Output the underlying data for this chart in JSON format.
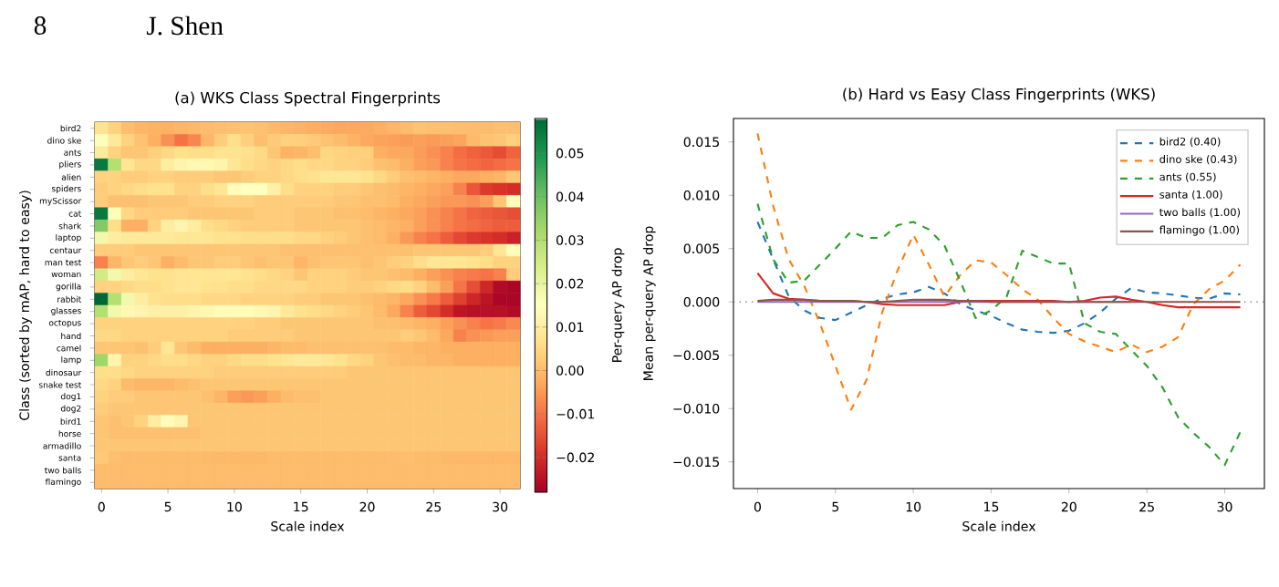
{
  "chart_data": [
    {
      "type": "heatmap",
      "title": "(a) WKS Class Spectral Fingerprints",
      "xlabel": "Scale index",
      "ylabel": "Class (sorted by mAP, hard to easy)",
      "clabel": "Per-query AP drop",
      "annotations": [
        "8",
        "J. Shen"
      ],
      "x": [
        0,
        1,
        2,
        3,
        4,
        5,
        6,
        7,
        8,
        9,
        10,
        11,
        12,
        13,
        14,
        15,
        16,
        17,
        18,
        19,
        20,
        21,
        22,
        23,
        24,
        25,
        26,
        27,
        28,
        29,
        30,
        31
      ],
      "xlim": [
        -0.5,
        31.5
      ],
      "xticks": [
        0,
        5,
        10,
        15,
        20,
        25,
        30
      ],
      "y_categories": [
        "bird2",
        "dino ske",
        "ants",
        "pliers",
        "alien",
        "spiders",
        "myScissor",
        "cat",
        "shark",
        "laptop",
        "centaur",
        "man test",
        "woman",
        "gorilla",
        "rabbit",
        "glasses",
        "octopus",
        "hand",
        "camel",
        "lamp",
        "dinosaur",
        "snake test",
        "dog1",
        "dog2",
        "bird1",
        "horse",
        "armadillo",
        "santa",
        "two balls",
        "flamingo"
      ],
      "clim": [
        -0.028,
        0.058
      ],
      "cticks": [
        {
          "value": -0.02,
          "label": "−0.02"
        },
        {
          "value": -0.01,
          "label": "−0.01"
        },
        {
          "value": 0,
          "label": "0.00"
        },
        {
          "value": 0.01,
          "label": "0.01"
        },
        {
          "value": 0.02,
          "label": "0.02"
        },
        {
          "value": 0.03,
          "label": "0.03"
        },
        {
          "value": 0.04,
          "label": "0.04"
        },
        {
          "value": 0.05,
          "label": "0.05"
        }
      ],
      "cells": [
        [
          0.0075,
          0.004,
          0.0005,
          -0.0008,
          -0.0015,
          -0.0017,
          -0.001,
          -0.0003,
          0.0003,
          0.0007,
          0.0009,
          0.0014,
          0.0008,
          -0.0002,
          -0.0008,
          -0.0013,
          -0.002,
          -0.0026,
          -0.0028,
          -0.0029,
          -0.0027,
          -0.002,
          -0.001,
          0.0003,
          0.0013,
          0.0009,
          0.0008,
          0.0006,
          0.0004,
          0.0003,
          0.0008,
          0.0007
        ],
        [
          0.0158,
          0.009,
          0.004,
          0.0015,
          -0.002,
          -0.006,
          -0.0101,
          -0.0073,
          -0.001,
          0.003,
          0.0063,
          0.0035,
          0.0005,
          0.0025,
          0.0039,
          0.0037,
          0.0025,
          0.0012,
          0.0002,
          -0.0015,
          -0.003,
          -0.0037,
          -0.0042,
          -0.0047,
          -0.004,
          -0.0047,
          -0.0042,
          -0.0033,
          -0.0002,
          0.0012,
          0.002,
          0.0035
        ],
        [
          0.0092,
          0.004,
          0.0018,
          0.002,
          0.0035,
          0.005,
          0.0066,
          0.006,
          0.006,
          0.0072,
          0.0075,
          0.0068,
          0.0053,
          0.002,
          -0.0015,
          -0.0008,
          0.0005,
          0.0048,
          0.0042,
          0.0036,
          0.0036,
          -0.002,
          -0.0028,
          -0.003,
          -0.0045,
          -0.006,
          -0.008,
          -0.0108,
          -0.0123,
          -0.0136,
          -0.0153,
          -0.0122
        ],
        [
          0.055,
          0.03,
          0.008,
          0.005,
          0.005,
          0.01,
          0.012,
          0.013,
          0.013,
          0.012,
          0.008,
          0.006,
          0.005,
          0.004,
          0.005,
          0.006,
          0.005,
          0.005,
          0.004,
          0.004,
          0.003,
          0.001,
          0,
          -0.002,
          -0.004,
          -0.005,
          -0.008,
          -0.01,
          -0.011,
          -0.012,
          -0.011,
          -0.01
        ],
        [
          0.004,
          0.004,
          0.003,
          0.003,
          0.004,
          0.004,
          0.003,
          0.003,
          0.003,
          0.002,
          0.002,
          0.003,
          0.004,
          0.004,
          0.005,
          0.006,
          0.007,
          0.008,
          0.008,
          0.008,
          0.007,
          0.005,
          0.003,
          0.001,
          0,
          -0.001,
          -0.002,
          -0.003,
          -0.003,
          -0.002,
          -0.001,
          0.002
        ],
        [
          0.003,
          0.004,
          0.005,
          0.006,
          0.007,
          0.007,
          0.004,
          0.004,
          0.006,
          0.008,
          0.014,
          0.015,
          0.015,
          0.011,
          0.006,
          0.004,
          0.004,
          0.004,
          0.003,
          0.003,
          0.002,
          0.001,
          0,
          -0.001,
          -0.002,
          -0.003,
          -0.004,
          -0.008,
          -0.014,
          -0.018,
          -0.019,
          -0.02
        ],
        [
          0.003,
          0.001,
          0.001,
          0.001,
          0.002,
          0.002,
          0.002,
          0.003,
          0.003,
          0.004,
          0.004,
          0.004,
          0.003,
          0.003,
          0.003,
          0.003,
          0.003,
          0.003,
          0.002,
          0.002,
          0.001,
          0.001,
          0,
          -0.002,
          -0.003,
          -0.004,
          -0.005,
          -0.005,
          -0.006,
          -0.004,
          0.002,
          0.014
        ],
        [
          0.055,
          0.016,
          0.005,
          0.003,
          0.003,
          0.003,
          0.003,
          0.002,
          0.002,
          0.002,
          0.002,
          0.002,
          0.003,
          0.003,
          0.003,
          0.002,
          0.002,
          0.002,
          0.001,
          0.001,
          0,
          -0.001,
          -0.002,
          -0.003,
          -0.004,
          -0.006,
          -0.008,
          -0.01,
          -0.012,
          -0.013,
          -0.014,
          -0.015
        ],
        [
          0.037,
          0.006,
          -0.002,
          -0.002,
          0.004,
          0.01,
          0.012,
          0.01,
          0.006,
          0.005,
          0.004,
          0.003,
          0.003,
          0.003,
          0.003,
          0.002,
          0.002,
          0.002,
          0.002,
          0.002,
          0.001,
          0,
          -0.001,
          -0.002,
          -0.004,
          -0.006,
          -0.008,
          -0.01,
          -0.011,
          -0.012,
          -0.013,
          -0.013
        ],
        [
          0.018,
          0.01,
          0.009,
          0.009,
          0.009,
          0.009,
          0.008,
          0.008,
          0.008,
          0.007,
          0.007,
          0.006,
          0.006,
          0.006,
          0.006,
          0.005,
          0.005,
          0.004,
          0.003,
          0.002,
          0.001,
          0,
          -0.002,
          -0.005,
          -0.008,
          -0.01,
          -0.013,
          -0.016,
          -0.018,
          -0.019,
          -0.02,
          -0.022
        ],
        [
          0.003,
          0.003,
          0.003,
          0.002,
          0.002,
          0.002,
          0.002,
          0.002,
          0.002,
          0.002,
          0.002,
          0.002,
          0.002,
          0.002,
          0.001,
          0.001,
          0.001,
          0.001,
          0.001,
          0.001,
          0.001,
          0.001,
          0.001,
          0.001,
          0.002,
          0.002,
          0.002,
          0.002,
          0.002,
          0.003,
          0.008,
          0.016
        ],
        [
          -0.008,
          -0.001,
          0.002,
          0.003,
          0.002,
          -0.002,
          0,
          0.002,
          0.002,
          0.003,
          0.003,
          0.002,
          0.001,
          0.002,
          0.002,
          -0.001,
          0.001,
          0.002,
          0.002,
          0.002,
          0.001,
          0.002,
          0.003,
          0.004,
          0.006,
          0.008,
          0.008,
          0.008,
          0.007,
          0.006,
          0.004,
          0.004
        ],
        [
          0.025,
          0.018,
          0.01,
          0.008,
          0.007,
          0.007,
          0.008,
          0.008,
          0.008,
          0.008,
          0.008,
          0.007,
          0.006,
          0.005,
          0.004,
          0.002,
          0.004,
          0.004,
          0.004,
          0.003,
          0.002,
          0.002,
          0.001,
          0,
          -0.002,
          -0.004,
          -0.006,
          -0.008,
          -0.009,
          -0.01,
          -0.008,
          0.003
        ],
        [
          0.004,
          0.004,
          0.005,
          0.006,
          0.006,
          0.007,
          0.008,
          0.008,
          0.007,
          0.007,
          0.006,
          0.006,
          0.005,
          0.005,
          0.005,
          0.005,
          0.004,
          0.004,
          0.004,
          0.003,
          0.003,
          0.004,
          0.005,
          0.006,
          0.004,
          0,
          -0.004,
          -0.01,
          -0.015,
          -0.021,
          -0.026,
          -0.027
        ],
        [
          0.058,
          0.03,
          0.018,
          0.01,
          0.007,
          0.006,
          0.006,
          0.006,
          0.005,
          0.005,
          0.005,
          0.004,
          0.004,
          0.004,
          0.004,
          0.003,
          0.003,
          0.002,
          0.002,
          0.002,
          0.001,
          0,
          -0.001,
          -0.003,
          -0.006,
          -0.009,
          -0.013,
          -0.017,
          -0.021,
          -0.024,
          -0.027,
          -0.027
        ],
        [
          0.03,
          0.018,
          0.013,
          0.012,
          0.011,
          0.011,
          0.011,
          0.012,
          0.013,
          0.014,
          0.014,
          0.014,
          0.013,
          0.012,
          0.009,
          0.007,
          0.006,
          0.005,
          0.004,
          0.003,
          0.002,
          0,
          -0.003,
          -0.008,
          -0.013,
          -0.016,
          -0.02,
          -0.024,
          -0.025,
          -0.025,
          -0.025,
          -0.026
        ],
        [
          0.004,
          0.004,
          0.004,
          0.004,
          0.004,
          0.004,
          0.004,
          0.004,
          0.004,
          0.004,
          0.004,
          0.004,
          0.003,
          0.003,
          0.002,
          0.002,
          0.002,
          0.002,
          0.002,
          0.002,
          0.002,
          0.001,
          0.001,
          0,
          -0.001,
          -0.002,
          -0.004,
          -0.006,
          -0.008,
          -0.01,
          -0.009,
          -0.007
        ],
        [
          0.005,
          0.005,
          0.004,
          0.004,
          0.004,
          0.004,
          0.004,
          0.004,
          0.004,
          0.004,
          0.003,
          0.003,
          0.003,
          0.003,
          0.003,
          0.002,
          0.002,
          0.002,
          0.002,
          0.002,
          0.002,
          0.002,
          0.002,
          0.003,
          0.002,
          0,
          -0.003,
          -0.008,
          -0.006,
          -0.005,
          -0.004,
          -0.004
        ],
        [
          0.002,
          0.002,
          0.002,
          0.001,
          0.003,
          0.008,
          0.002,
          0,
          -0.002,
          -0.002,
          -0.002,
          -0.002,
          -0.002,
          -0.001,
          0,
          0,
          0.001,
          0.001,
          0.001,
          0.001,
          0.001,
          0.001,
          0,
          0,
          -0.001,
          -0.001,
          -0.002,
          -0.002,
          -0.002,
          -0.002,
          -0.002,
          -0.002
        ],
        [
          0.033,
          0.012,
          0.004,
          0.004,
          0.005,
          0.006,
          0.006,
          0.005,
          0.004,
          0.004,
          0.005,
          0.006,
          0.006,
          0.007,
          0.008,
          0.009,
          0.009,
          0.008,
          0.007,
          0.005,
          0.004,
          0.002,
          0.001,
          0,
          0,
          -0.001,
          -0.001,
          -0.002,
          -0.002,
          -0.002,
          -0.002,
          -0.002
        ],
        [
          0.006,
          0.006,
          0.005,
          0.004,
          0.004,
          0.004,
          0.004,
          0.004,
          0.004,
          0.003,
          0.003,
          0.003,
          0.003,
          0.003,
          0.003,
          0.003,
          0.003,
          0.003,
          0.003,
          0.002,
          0.002,
          0.002,
          0.002,
          0.002,
          0.002,
          0.002,
          0.002,
          0.002,
          0.002,
          0.002,
          0.002,
          0.002
        ],
        [
          0.005,
          0.004,
          0,
          -0.001,
          -0.001,
          -0.001,
          0,
          0.001,
          0.002,
          0.002,
          0.002,
          0.002,
          0.002,
          0.002,
          0.002,
          0.002,
          0.002,
          0.002,
          0.002,
          0.002,
          0.002,
          0.002,
          0.002,
          0.002,
          0.002,
          0.002,
          0.002,
          0.002,
          0.002,
          0.002,
          0.002,
          0.002
        ],
        [
          0.004,
          0.003,
          0.003,
          0.002,
          0.002,
          0.002,
          0.002,
          0.002,
          0.001,
          -0.001,
          -0.004,
          -0.005,
          -0.004,
          -0.002,
          0,
          0.001,
          0.001,
          0.002,
          0.002,
          0.002,
          0.002,
          0.002,
          0.002,
          0.002,
          0.002,
          0.002,
          0.002,
          0.002,
          0.002,
          0.002,
          0.002,
          0.002
        ],
        [
          0.003,
          0.002,
          0.002,
          0.002,
          0.002,
          0.002,
          0.002,
          0.002,
          0.002,
          0.002,
          0.002,
          0.002,
          0.002,
          0.002,
          0.002,
          0.002,
          0.002,
          0.002,
          0.002,
          0.002,
          0.002,
          0.002,
          0.002,
          0.002,
          0.002,
          0.002,
          0.002,
          0.002,
          0.002,
          0.002,
          0.002,
          0.002
        ],
        [
          0.002,
          0.001,
          0.002,
          0.004,
          0.01,
          0.014,
          0.012,
          0.002,
          0.002,
          0.002,
          0.002,
          0.002,
          0.002,
          0.002,
          0.002,
          0.002,
          0.002,
          0.002,
          0.002,
          0.002,
          0.002,
          0.002,
          0.002,
          0.002,
          0.002,
          0.002,
          0.002,
          0.002,
          0.002,
          0.002,
          0.002,
          0.002
        ],
        [
          0.002,
          0.001,
          0.001,
          0.001,
          0.001,
          0.001,
          0.001,
          0.001,
          0.002,
          0.002,
          0.002,
          0.002,
          0.002,
          0.002,
          0.002,
          0.002,
          0.002,
          0.002,
          0.002,
          0.002,
          0.002,
          0.002,
          0.002,
          0.002,
          0.002,
          0.002,
          0.002,
          0.002,
          0.002,
          0.002,
          0.002,
          0.002
        ],
        [
          0.002,
          0.002,
          0.002,
          0.002,
          0.002,
          0.002,
          0.002,
          0.002,
          0.002,
          0.002,
          0.002,
          0.002,
          0.002,
          0.002,
          0.002,
          0.002,
          0.002,
          0.002,
          0.002,
          0.002,
          0.002,
          0.002,
          0.002,
          0.002,
          0.002,
          0.002,
          0.002,
          0.002,
          0.002,
          0.002,
          0.002,
          0.002
        ],
        [
          0.0027,
          0.0008,
          0.0003,
          0.0002,
          0.0001,
          0.0001,
          0.0001,
          0,
          -0.0002,
          -0.0003,
          -0.0003,
          -0.0003,
          -0.0003,
          0,
          0.0001,
          0.0001,
          0.0001,
          0.0001,
          0.0001,
          0.0001,
          0,
          0.0001,
          0.0004,
          0.0005,
          0.0002,
          0,
          -0.0003,
          -0.0005,
          -0.0005,
          -0.0005,
          -0.0005,
          -0.0005
        ],
        [
          0,
          0,
          0,
          0,
          0,
          0,
          0,
          0,
          0,
          0,
          0,
          0,
          0,
          0,
          0,
          0,
          0,
          0,
          0,
          0,
          0,
          0,
          0,
          0,
          0,
          0,
          0,
          0,
          0,
          0,
          0,
          0
        ],
        [
          0.0001,
          0.0002,
          0.0002,
          0.0002,
          0.0001,
          0.0001,
          0.0001,
          0,
          0,
          0.0001,
          0.0002,
          0.0002,
          0.0002,
          0.0001,
          0.0001,
          0,
          0,
          0,
          0,
          0,
          0,
          0,
          0,
          0,
          0,
          0,
          0,
          0,
          0,
          0,
          0,
          0
        ]
      ]
    },
    {
      "type": "line",
      "title": "(b) Hard vs Easy Class Fingerprints (WKS)",
      "xlabel": "Scale index",
      "ylabel": "Mean per-query AP drop",
      "x": [
        0,
        1,
        2,
        3,
        4,
        5,
        6,
        7,
        8,
        9,
        10,
        11,
        12,
        13,
        14,
        15,
        16,
        17,
        18,
        19,
        20,
        21,
        22,
        23,
        24,
        25,
        26,
        27,
        28,
        29,
        30,
        31
      ],
      "xlim": [
        -1.55,
        32.55
      ],
      "xticks": [
        0,
        5,
        10,
        15,
        20,
        25,
        30
      ],
      "ylim": [
        -0.0175,
        0.0172
      ],
      "yticks": [
        {
          "value": -0.015,
          "label": "−0.015"
        },
        {
          "value": -0.01,
          "label": "−0.010"
        },
        {
          "value": -0.005,
          "label": "−0.005"
        },
        {
          "value": 0,
          "label": "0.000"
        },
        {
          "value": 0.005,
          "label": "0.005"
        },
        {
          "value": 0.01,
          "label": "0.010"
        },
        {
          "value": 0.015,
          "label": "0.015"
        }
      ],
      "legend": "top right",
      "ref_lines": [
        {
          "axis": "y",
          "value": 0,
          "color": "#808080",
          "line_style": "dotted"
        }
      ],
      "series": [
        {
          "name": "bird2 (0.40)",
          "color": "#1f77b4",
          "line_style": "dashed",
          "values": [
            0.0075,
            0.004,
            0.0005,
            -0.0008,
            -0.0015,
            -0.0017,
            -0.001,
            -0.0003,
            0.0003,
            0.0007,
            0.0009,
            0.0014,
            0.0008,
            -0.0002,
            -0.0008,
            -0.0013,
            -0.002,
            -0.0026,
            -0.0028,
            -0.0029,
            -0.0027,
            -0.002,
            -0.001,
            0.0003,
            0.0013,
            0.0009,
            0.0008,
            0.0006,
            0.0004,
            0.0003,
            0.0008,
            0.0007
          ]
        },
        {
          "name": "dino ske (0.43)",
          "color": "#ff7f0e",
          "line_style": "dashed",
          "values": [
            0.0158,
            0.009,
            0.004,
            0.0015,
            -0.002,
            -0.006,
            -0.0101,
            -0.0073,
            -0.001,
            0.003,
            0.0063,
            0.0035,
            0.0005,
            0.0025,
            0.0039,
            0.0037,
            0.0025,
            0.0012,
            0.0002,
            -0.0015,
            -0.003,
            -0.0037,
            -0.0042,
            -0.0047,
            -0.004,
            -0.0047,
            -0.0042,
            -0.0033,
            -0.0002,
            0.0012,
            0.002,
            0.0035
          ]
        },
        {
          "name": "ants (0.55)",
          "color": "#2ca02c",
          "line_style": "dashed",
          "values": [
            0.0092,
            0.004,
            0.0018,
            0.002,
            0.0035,
            0.005,
            0.0066,
            0.006,
            0.006,
            0.0072,
            0.0075,
            0.0068,
            0.0053,
            0.002,
            -0.0015,
            -0.0008,
            0.0005,
            0.0048,
            0.0042,
            0.0036,
            0.0036,
            -0.002,
            -0.0028,
            -0.003,
            -0.0045,
            -0.006,
            -0.008,
            -0.0108,
            -0.0123,
            -0.0136,
            -0.0153,
            -0.0122
          ]
        },
        {
          "name": "santa (1.00)",
          "color": "#d62728",
          "line_style": "solid",
          "values": [
            0.0027,
            0.0008,
            0.0003,
            0.0002,
            0.0001,
            0.0001,
            0.0001,
            0,
            -0.0002,
            -0.0003,
            -0.0003,
            -0.0003,
            -0.0003,
            0,
            0.0001,
            0.0001,
            0.0001,
            0.0001,
            0.0001,
            0.0001,
            0,
            0.0001,
            0.0004,
            0.0005,
            0.0002,
            0,
            -0.0003,
            -0.0005,
            -0.0005,
            -0.0005,
            -0.0005,
            -0.0005
          ]
        },
        {
          "name": "two balls (1.00)",
          "color": "#9467bd",
          "line_style": "solid",
          "values": [
            0,
            0,
            0,
            0,
            0,
            0,
            0,
            0,
            0,
            0,
            0,
            0,
            0,
            0,
            0,
            0,
            0,
            0,
            0,
            0,
            0,
            0,
            0,
            0,
            0,
            null,
            null,
            null,
            null,
            null,
            null,
            null
          ]
        },
        {
          "name": "flamingo (1.00)",
          "color": "#8c564b",
          "line_style": "solid",
          "values": [
            0.0001,
            0.0002,
            0.0002,
            0.0002,
            0.0001,
            0.0001,
            0.0001,
            0,
            0,
            0.0001,
            0.0002,
            0.0002,
            0.0002,
            0.0001,
            0.0001,
            0,
            0,
            0,
            0,
            0,
            0,
            0,
            0,
            0,
            0,
            0,
            0,
            0,
            0,
            0,
            0,
            0
          ]
        }
      ]
    }
  ]
}
